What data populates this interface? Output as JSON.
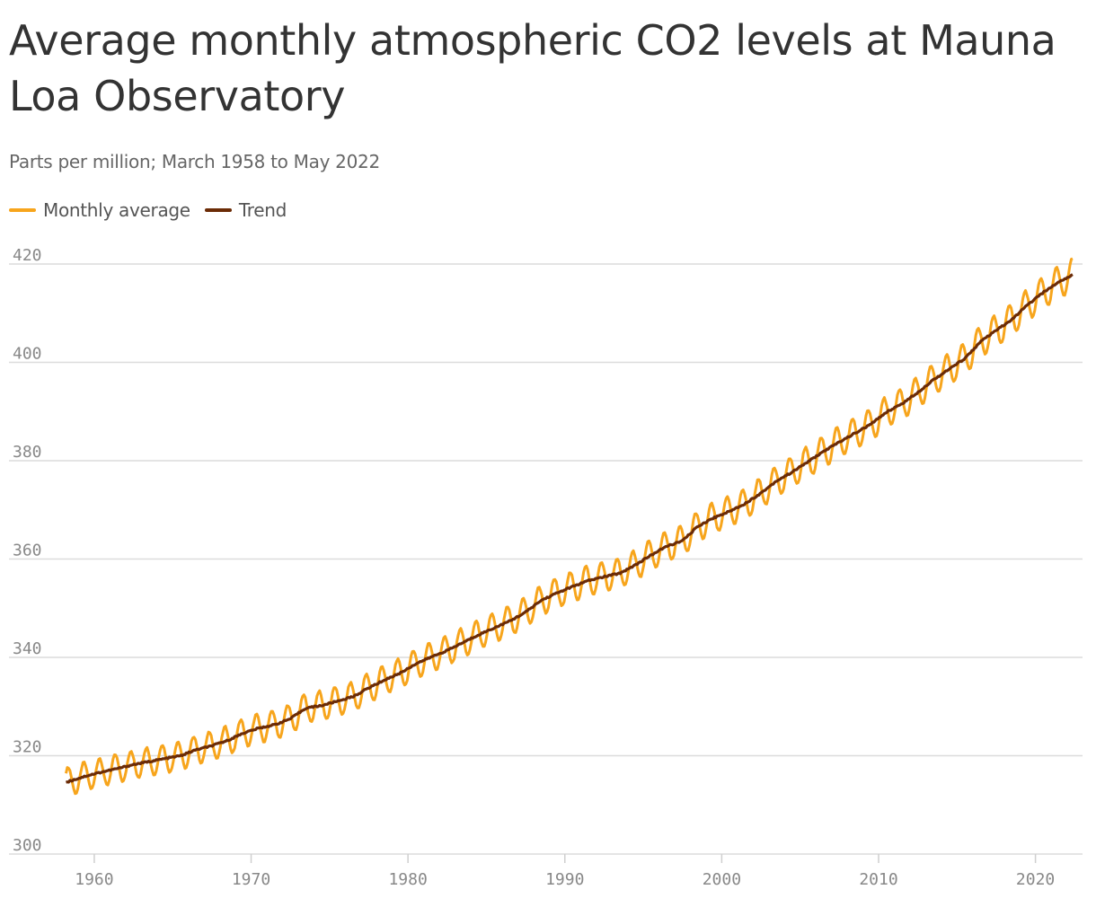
{
  "chart_data": {
    "type": "line",
    "title": "Average monthly atmospheric CO2 levels at Mauna Loa Observatory",
    "subtitle": "Parts per million; March 1958 to May 2022",
    "xlabel": "",
    "ylabel": "",
    "xlim": [
      1958.0,
      2023.0
    ],
    "ylim": [
      300,
      420
    ],
    "yticks": [
      "420",
      "400",
      "380",
      "360",
      "340",
      "320",
      "300"
    ],
    "xticks": [
      "1960",
      "1970",
      "1980",
      "1990",
      "2000",
      "2010",
      "2020"
    ],
    "legend": "top-left",
    "grid": true,
    "series": [
      {
        "name": "Monthly average",
        "color": "#f7a51c",
        "x_start": 1958.2,
        "x_end": 2022.37,
        "note": "monthly means; seasonal cycle amplitude ~3 ppm around trend",
        "annual_trend_ppm": {
          "1958": 314.9,
          "1959": 315.9,
          "1960": 316.7,
          "1961": 317.4,
          "1962": 318.2,
          "1963": 318.8,
          "1964": 319.4,
          "1965": 320.0,
          "1966": 321.2,
          "1967": 322.0,
          "1968": 323.1,
          "1969": 324.6,
          "1970": 325.6,
          "1971": 326.3,
          "1972": 327.5,
          "1973": 329.7,
          "1974": 330.2,
          "1975": 331.1,
          "1976": 332.0,
          "1977": 333.8,
          "1978": 335.4,
          "1979": 336.8,
          "1980": 338.7,
          "1981": 340.1,
          "1982": 341.4,
          "1983": 343.0,
          "1984": 344.6,
          "1985": 346.0,
          "1986": 347.4,
          "1987": 349.2,
          "1988": 351.6,
          "1989": 353.1,
          "1990": 354.4,
          "1991": 355.6,
          "1992": 356.4,
          "1993": 357.1,
          "1994": 358.8,
          "1995": 360.8,
          "1996": 362.6,
          "1997": 363.7,
          "1998": 366.7,
          "1999": 368.4,
          "2000": 369.7,
          "2001": 371.3,
          "2002": 373.4,
          "2003": 375.9,
          "2004": 377.7,
          "2005": 379.8,
          "2006": 381.9,
          "2007": 383.8,
          "2008": 385.6,
          "2009": 387.4,
          "2010": 389.9,
          "2011": 391.6,
          "2012": 393.9,
          "2013": 396.5,
          "2014": 398.6,
          "2015": 400.8,
          "2016": 404.2,
          "2017": 406.5,
          "2018": 408.7,
          "2019": 411.7,
          "2020": 414.2,
          "2021": 416.4,
          "2022": 418.0
        }
      },
      {
        "name": "Trend",
        "color": "#6b2b06",
        "x_start": 1958.2,
        "x_end": 2022.37,
        "note": "deseasonalized trend, same annual values as above"
      }
    ]
  }
}
